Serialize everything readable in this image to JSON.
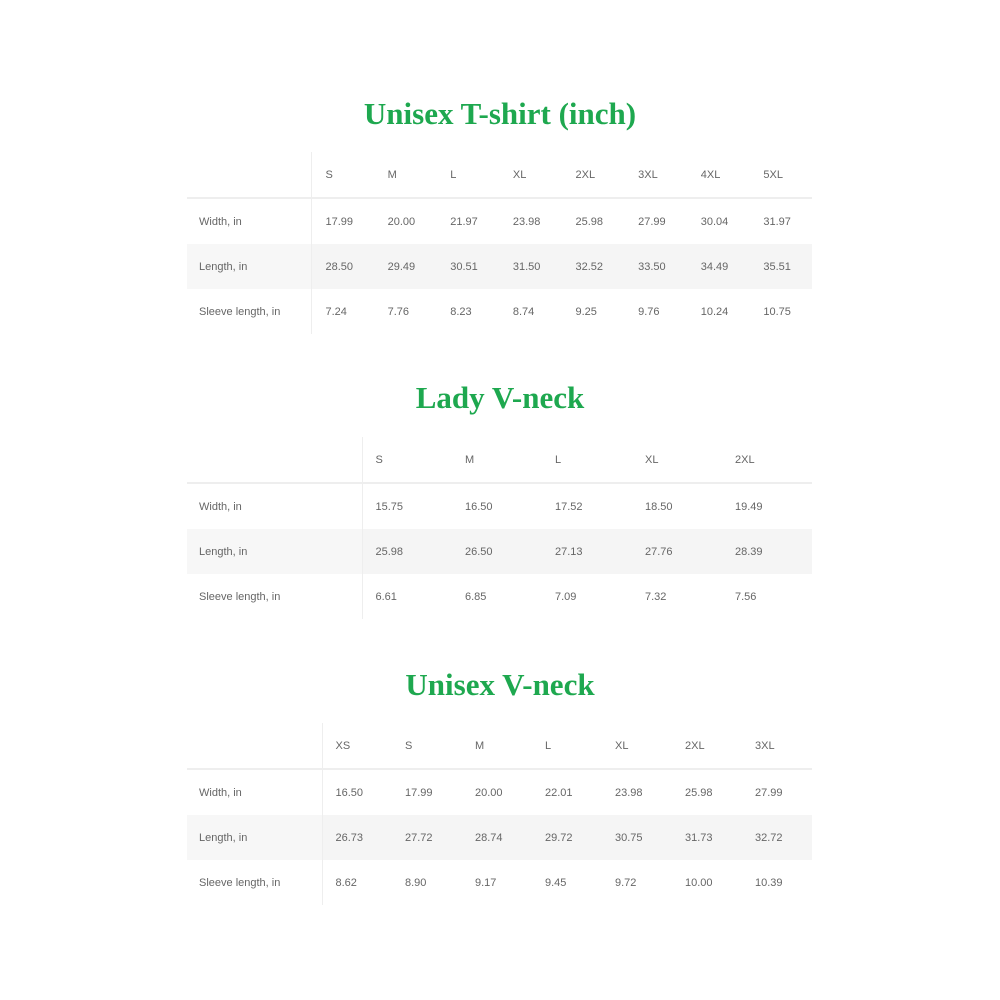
{
  "charts": [
    {
      "title": "Unisex T-shirt (inch)",
      "sizes": [
        "S",
        "M",
        "L",
        "XL",
        "2XL",
        "3XL",
        "4XL",
        "5XL"
      ],
      "rows": [
        {
          "label": "Width, in",
          "values": [
            "17.99",
            "20.00",
            "21.97",
            "23.98",
            "25.98",
            "27.99",
            "30.04",
            "31.97"
          ]
        },
        {
          "label": "Length, in",
          "values": [
            "28.50",
            "29.49",
            "30.51",
            "31.50",
            "32.52",
            "33.50",
            "34.49",
            "35.51"
          ]
        },
        {
          "label": "Sleeve length, in",
          "values": [
            "7.24",
            "7.76",
            "8.23",
            "8.74",
            "9.25",
            "9.76",
            "10.24",
            "10.75"
          ]
        }
      ]
    },
    {
      "title": "Lady V-neck",
      "sizes": [
        "S",
        "M",
        "L",
        "XL",
        "2XL"
      ],
      "rows": [
        {
          "label": "Width, in",
          "values": [
            "15.75",
            "16.50",
            "17.52",
            "18.50",
            "19.49"
          ]
        },
        {
          "label": "Length, in",
          "values": [
            "25.98",
            "26.50",
            "27.13",
            "27.76",
            "28.39"
          ]
        },
        {
          "label": "Sleeve length, in",
          "values": [
            "6.61",
            "6.85",
            "7.09",
            "7.32",
            "7.56"
          ]
        }
      ]
    },
    {
      "title": "Unisex V-neck",
      "sizes": [
        "XS",
        "S",
        "M",
        "L",
        "XL",
        "2XL",
        "3XL"
      ],
      "rows": [
        {
          "label": "Width, in",
          "values": [
            "16.50",
            "17.99",
            "20.00",
            "22.01",
            "23.98",
            "25.98",
            "27.99"
          ]
        },
        {
          "label": "Length, in",
          "values": [
            "26.73",
            "27.72",
            "28.74",
            "29.72",
            "30.75",
            "31.73",
            "32.72"
          ]
        },
        {
          "label": "Sleeve length, in",
          "values": [
            "8.62",
            "8.90",
            "9.17",
            "9.45",
            "9.72",
            "10.00",
            "10.39"
          ]
        }
      ]
    }
  ],
  "colors": {
    "title": "#1ea84f",
    "alt_row": "#f5f5f5",
    "text": "#666666"
  }
}
